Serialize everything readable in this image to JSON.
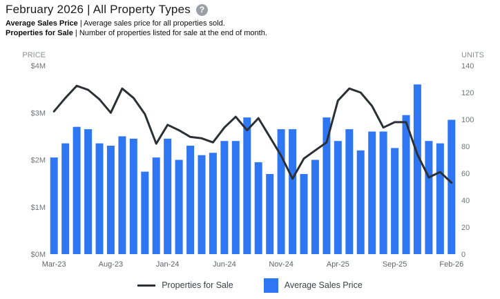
{
  "header": {
    "title": "February 2026 | All Property Types",
    "help_icon": "?",
    "separator": " | ",
    "descriptions": [
      {
        "term": "Average Sales Price",
        "text": "Average sales price for all properties sold."
      },
      {
        "term": "Properties for Sale",
        "text": "Number of properties listed for sale at the end of month."
      }
    ]
  },
  "legend": {
    "line_label": "Properties for Sale",
    "bar_label": "Average Sales Price"
  },
  "colors": {
    "bar_blue": "#2f76f3",
    "line_dark": "#2c2f33",
    "help_icon_bg": "#9aa0a6"
  },
  "chart_data": {
    "type": "combo-bar-line",
    "title": "February 2026 | All Property Types",
    "grid": false,
    "legend_position": "bottom",
    "categories": [
      "Mar-23",
      "Apr-23",
      "May-23",
      "Jun-23",
      "Jul-23",
      "Aug-23",
      "Sep-23",
      "Oct-23",
      "Nov-23",
      "Dec-23",
      "Jan-24",
      "Feb-24",
      "Mar-24",
      "Apr-24",
      "May-24",
      "Jun-24",
      "Jul-24",
      "Aug-24",
      "Sep-24",
      "Oct-24",
      "Nov-24",
      "Dec-24",
      "Jan-25",
      "Feb-25",
      "Mar-25",
      "Apr-25",
      "May-25",
      "Jun-25",
      "Jul-25",
      "Aug-25",
      "Sep-25",
      "Oct-25",
      "Nov-25",
      "Dec-25",
      "Jan-26",
      "Feb-26"
    ],
    "x_axis": {
      "shown_tick_indices": [
        0,
        5,
        10,
        15,
        20,
        25,
        30,
        35
      ]
    },
    "left_axis": {
      "title": "PRICE",
      "min": 0,
      "max": 4,
      "unit": "$M",
      "ticks": [
        {
          "label": "$4M",
          "value": 4
        },
        {
          "label": "$3M",
          "value": 3
        },
        {
          "label": "$2M",
          "value": 2
        },
        {
          "label": "$1M",
          "value": 1
        },
        {
          "label": "$0M",
          "value": 0
        }
      ]
    },
    "right_axis": {
      "title": "UNITS",
      "min": 0,
      "max": 140,
      "tick_step": 20
    },
    "series": [
      {
        "name": "Average Sales Price",
        "type": "bar",
        "axis": "left",
        "color": "#2f76f3",
        "unit": "$M",
        "values": [
          2.05,
          2.35,
          2.7,
          2.65,
          2.35,
          2.3,
          2.5,
          2.45,
          1.75,
          2.05,
          2.45,
          2.0,
          2.3,
          2.1,
          2.15,
          2.4,
          2.4,
          2.9,
          1.95,
          1.7,
          2.65,
          2.65,
          1.7,
          2.0,
          2.9,
          2.4,
          2.65,
          2.2,
          2.6,
          2.6,
          2.25,
          2.95,
          3.6,
          2.4,
          2.35,
          2.85
        ]
      },
      {
        "name": "Properties for Sale",
        "type": "line",
        "axis": "right",
        "unit": "units",
        "color": "#2c2f33",
        "values": [
          106,
          116,
          125,
          122,
          115,
          105,
          123,
          116,
          104,
          82,
          96,
          92,
          87,
          86,
          83,
          94,
          102,
          92,
          101,
          87,
          73,
          56,
          71,
          77,
          83,
          114,
          123,
          120,
          110,
          94,
          98,
          98,
          74,
          57,
          61,
          53
        ]
      }
    ]
  }
}
